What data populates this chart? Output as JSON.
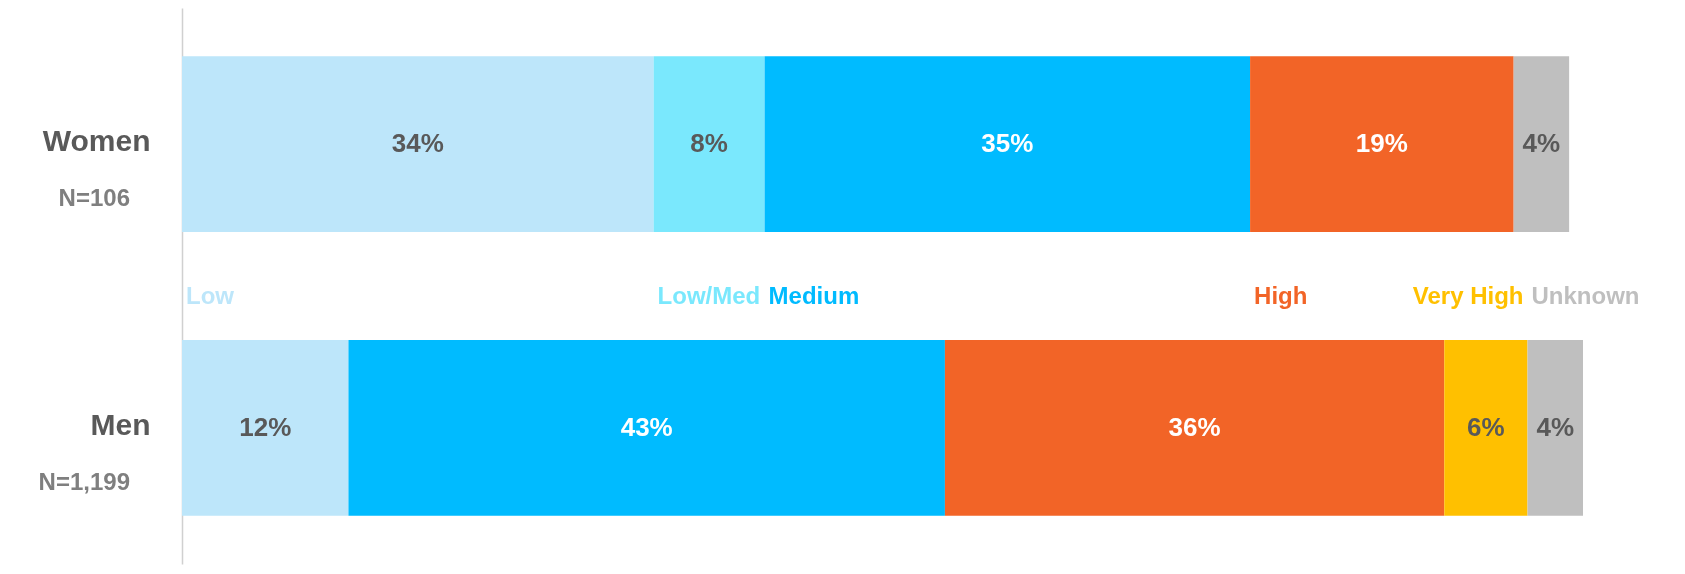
{
  "chart_data": {
    "type": "bar",
    "orientation": "horizontal",
    "stacked": true,
    "categories": [
      "Women",
      "Men"
    ],
    "series": [
      {
        "name": "Low",
        "color": "#bde6fa",
        "values": [
          34,
          12
        ],
        "value_labels": [
          "34%",
          "12%"
        ]
      },
      {
        "name": "Low/Med",
        "color": "#7ae8fd",
        "values": [
          8,
          null
        ],
        "value_labels": [
          "8%",
          null
        ]
      },
      {
        "name": "Medium",
        "color": "#00bbff",
        "values": [
          35,
          43
        ],
        "value_labels": [
          "35%",
          "43%"
        ]
      },
      {
        "name": "High",
        "color": "#f26427",
        "values": [
          19,
          36
        ],
        "value_labels": [
          "19%",
          "36%"
        ]
      },
      {
        "name": "Very High",
        "color": "#ffc000",
        "values": [
          null,
          6
        ],
        "value_labels": [
          null,
          "6%"
        ]
      },
      {
        "name": "Unknown",
        "color": "#bfbfbf",
        "values": [
          4,
          4
        ],
        "value_labels": [
          "4%",
          "4%"
        ]
      }
    ],
    "annotations": [
      "N=106",
      "N=1,199"
    ],
    "legend": false
  }
}
